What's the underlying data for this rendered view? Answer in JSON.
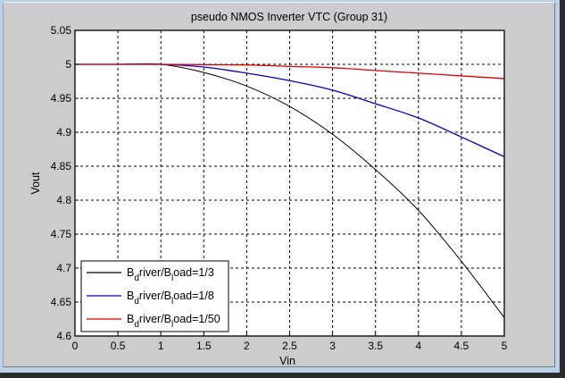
{
  "window": {
    "background": "#cccccc",
    "frame_color": "#b9d1ea"
  },
  "chart_data": {
    "type": "line",
    "title": "pseudo NMOS Inverter VTC (Group 31)",
    "xlabel": "Vin",
    "ylabel": "Vout",
    "xlim": [
      0,
      5
    ],
    "ylim": [
      4.6,
      5.05
    ],
    "grid": true,
    "xticks": [
      0,
      0.5,
      1,
      1.5,
      2,
      2.5,
      3,
      3.5,
      4,
      4.5,
      5
    ],
    "xtick_labels": [
      "0",
      "0.5",
      "1",
      "1.5",
      "2",
      "2.5",
      "3",
      "3.5",
      "4",
      "4.5",
      "5"
    ],
    "yticks": [
      4.6,
      4.65,
      4.7,
      4.75,
      4.8,
      4.85,
      4.9,
      4.95,
      5,
      5.05
    ],
    "ytick_labels": [
      "4.6",
      "4.65",
      "4.7",
      "4.75",
      "4.8",
      "4.85",
      "4.9",
      "4.95",
      "5",
      "5.05"
    ],
    "legend_position": "lower left",
    "x": [
      0,
      0.5,
      1,
      1.5,
      2,
      2.5,
      3,
      3.5,
      4,
      4.5,
      5
    ],
    "series": [
      {
        "name": "B_driver/B_load=1/3",
        "label_main": "B",
        "label_sub1": "d",
        "label_mid": "river/B",
        "label_sub2": "l",
        "label_tail": "oad=1/3",
        "color": "#000000",
        "values": [
          5.0,
          5.0,
          5.0,
          4.988,
          4.968,
          4.938,
          4.897,
          4.845,
          4.785,
          4.71,
          4.627
        ]
      },
      {
        "name": "B_driver/B_load=1/8",
        "label_main": "B",
        "label_sub1": "d",
        "label_mid": "river/B",
        "label_sub2": "l",
        "label_tail": "oad=1/8",
        "color": "#0000cc",
        "values": [
          5.0,
          5.0,
          5.0,
          4.996,
          4.987,
          4.976,
          4.962,
          4.942,
          4.921,
          4.893,
          4.864
        ]
      },
      {
        "name": "B_driver/B_load=1/50",
        "label_main": "B",
        "label_sub1": "d",
        "label_mid": "river/B",
        "label_sub2": "l",
        "label_tail": "oad=1/50",
        "color": "#dd0000",
        "values": [
          5.0,
          5.0,
          5.0,
          4.9995,
          4.999,
          4.997,
          4.995,
          4.991,
          4.987,
          4.983,
          4.979
        ]
      }
    ]
  }
}
